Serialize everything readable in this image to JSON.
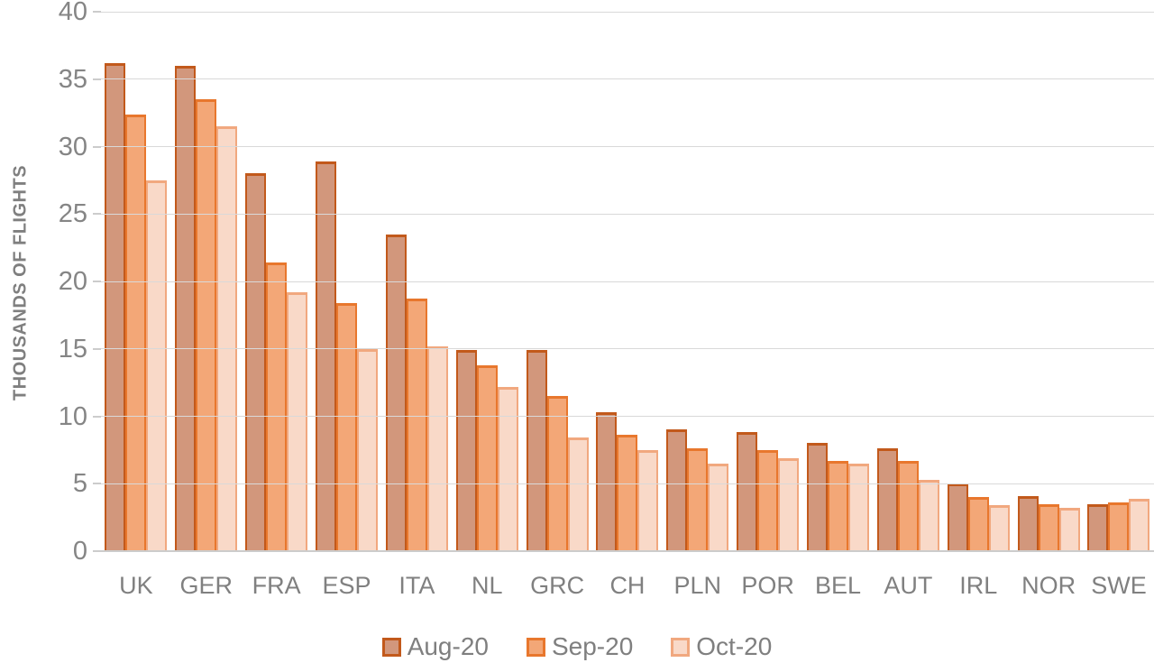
{
  "chart_data": {
    "type": "bar",
    "title": "",
    "xlabel": "",
    "ylabel": "THOUSANDS OF FLIGHTS",
    "ylim": [
      0,
      40
    ],
    "yticks": [
      0,
      5,
      10,
      15,
      20,
      25,
      30,
      35,
      40
    ],
    "grid": "horizontal",
    "legend_position": "bottom-center",
    "categories": [
      "UK",
      "GER",
      "FRA",
      "ESP",
      "ITA",
      "NL",
      "GRC",
      "CH",
      "PLN",
      "POR",
      "BEL",
      "AUT",
      "IRL",
      "NOR",
      "SWE"
    ],
    "series": [
      {
        "name": "Aug-20",
        "fill": "#D2977C",
        "border": "#C2591B",
        "values": [
          36.2,
          36.0,
          28.0,
          28.9,
          23.5,
          14.9,
          14.9,
          10.3,
          9.0,
          8.8,
          8.0,
          7.6,
          5.0,
          4.1,
          3.5
        ]
      },
      {
        "name": "Sep-20",
        "fill": "#F3A777",
        "border": "#E8772D",
        "values": [
          32.4,
          33.5,
          21.4,
          18.4,
          18.7,
          13.8,
          11.5,
          8.6,
          7.6,
          7.5,
          6.7,
          6.7,
          4.0,
          3.5,
          3.6
        ]
      },
      {
        "name": "Oct-20",
        "fill": "#F9D9C8",
        "border": "#F1A87F",
        "values": [
          27.5,
          31.5,
          19.2,
          15.0,
          15.2,
          12.2,
          8.4,
          7.5,
          6.5,
          6.9,
          6.5,
          5.3,
          3.4,
          3.2,
          3.9
        ]
      }
    ],
    "colors": {
      "gridline": "#D9D9D9",
      "axis_line": "#CCCCCC",
      "axis_text": "#808080",
      "axis_title_text": "#7F7F7F"
    }
  }
}
